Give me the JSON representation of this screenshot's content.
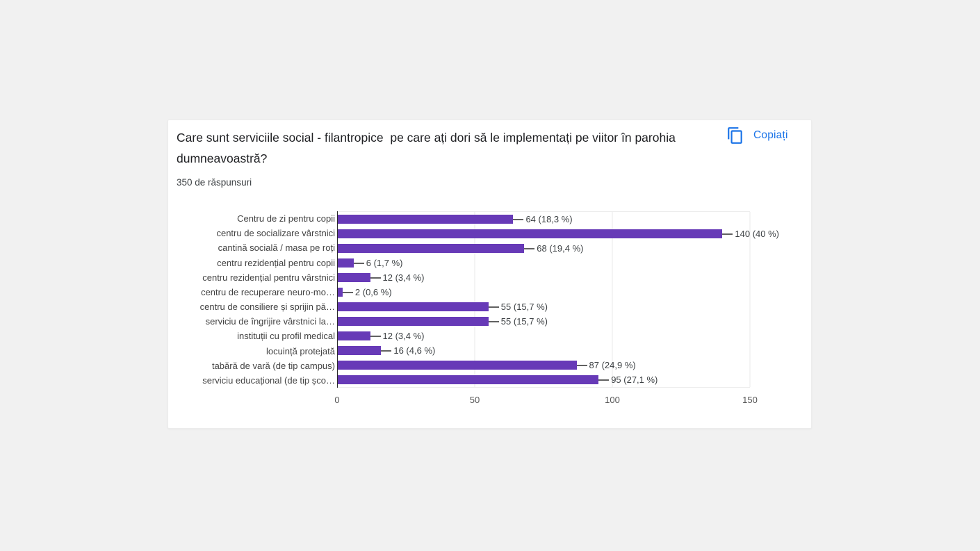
{
  "page": {
    "background_color": "#f1f1f1",
    "card_background": "#ffffff"
  },
  "header": {
    "title": "Care sunt serviciile social - filantropice  pe care ați dori să le implementați pe viitor în parohia dumneavoastră?",
    "responses_count": "350 de răspunsuri",
    "copy_button": {
      "label": "Copiați",
      "color": "#1a73e8",
      "icon": "copy-icon"
    }
  },
  "chart_data": {
    "type": "bar",
    "orientation": "horizontal",
    "bar_color": "#673ab7",
    "grid": true,
    "legend_position": "none",
    "title": "",
    "xlabel": "",
    "ylabel": "",
    "xlim": [
      0,
      150
    ],
    "x_ticks": [
      "0",
      "50",
      "100",
      "150"
    ],
    "categories": [
      "Centru de zi pentru copii",
      "centru de socializare vârstnici",
      "cantină socială / masa pe roți",
      "centru rezidențial pentru copii",
      "centru rezidențial pentru vârstnici",
      "centru de recuperare neuro-mo…",
      "centru de consiliere și sprijin pă…",
      "serviciu de îngrijire vârstnici la…",
      "instituții cu profil medical",
      "locuință protejată",
      "tabără de vară (de tip campus)",
      "serviciu educațional (de tip șco…"
    ],
    "values": [
      64,
      140,
      68,
      6,
      12,
      2,
      55,
      55,
      12,
      16,
      87,
      95
    ],
    "annotations": [
      "64 (18,3 %)",
      "140 (40 %)",
      "68 (19,4 %)",
      "6 (1,7 %)",
      "12 (3,4 %)",
      "2 (0,6 %)",
      "55 (15,7 %)",
      "55 (15,7 %)",
      "12 (3,4 %)",
      "16 (4,6 %)",
      "87 (24,9 %)",
      "95 (27,1 %)"
    ]
  }
}
